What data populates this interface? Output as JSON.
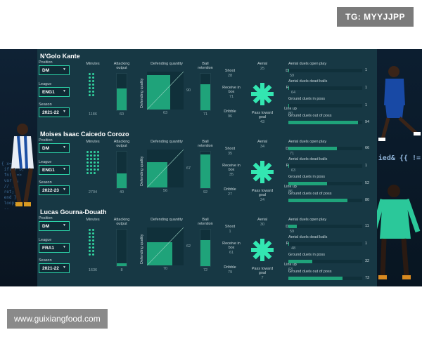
{
  "watermark": "TG: MYYJJPP",
  "footer_url": "www.guixiangfood.com",
  "labels": {
    "position": "Position",
    "league": "League",
    "season": "Season",
    "minutes": "Minutes",
    "attacking_output": "Attacking output",
    "defending_quantity": "Defending quantity",
    "defending_quality": "Defending quality",
    "ball_retention": "Ball retention",
    "shoot": "Shoot",
    "aerial": "Aerial",
    "disrupt": "Disrupt",
    "receive_in_box": "Receive in box",
    "recover": "Recover",
    "dribble": "Dribble",
    "pass_toward_goal": "Pass toward goal",
    "link_up": "Link up",
    "aerial_open": "Aerial duels open play",
    "aerial_dead": "Aerial duels dead balls",
    "ground_in": "Ground duels in poss",
    "ground_out": "Ground duels out of poss"
  },
  "colors": {
    "accent": "#2cd3a8",
    "panel": "#173844",
    "fill": "#1fa37a"
  },
  "players": [
    {
      "name": "N'Golo Kante",
      "position": "DM",
      "league": "ENG1",
      "season": "2021-22",
      "minutes": 1186,
      "dots": 14,
      "attacking_output": 60,
      "defending_quantity": 63,
      "defending_quality": 90,
      "ball_retention": 71,
      "shoot": 28,
      "aerial": 25,
      "disrupt": 59,
      "receive_in_box": 71,
      "recover": 64,
      "dribble": 96,
      "pass_toward_goal": 43,
      "link_up": 80,
      "aerial_open": 1,
      "aerial_dead": 1,
      "ground_in": 1,
      "ground_out": 94
    },
    {
      "name": "Moises Isaac Caicedo Corozo",
      "position": "DM",
      "league": "ENG1",
      "season": "2022-23",
      "minutes": 2704,
      "dots": 27,
      "attacking_output": 40,
      "defending_quantity": 56,
      "defending_quality": 67,
      "ball_retention": 92,
      "shoot": 35,
      "aerial": 34,
      "disrupt": 71,
      "receive_in_box": 35,
      "recover": 63,
      "dribble": 27,
      "pass_toward_goal": 24,
      "link_up": 86,
      "aerial_open": 66,
      "aerial_dead": 1,
      "ground_in": 52,
      "ground_out": 80
    },
    {
      "name": "Lucas Gourna-Douath",
      "position": "DM",
      "league": "FRA1",
      "season": "2021-22",
      "minutes": 1636,
      "dots": 16,
      "attacking_output": 8,
      "defending_quantity": 70,
      "defending_quality": 62,
      "ball_retention": 72,
      "shoot": 1,
      "aerial": 30,
      "disrupt": 59,
      "receive_in_box": 61,
      "recover": 48,
      "dribble": 79,
      "pass_toward_goal": 7,
      "link_up": 63,
      "aerial_open": 11,
      "aerial_dead": 1,
      "ground_in": 32,
      "ground_out": 73
    }
  ]
}
